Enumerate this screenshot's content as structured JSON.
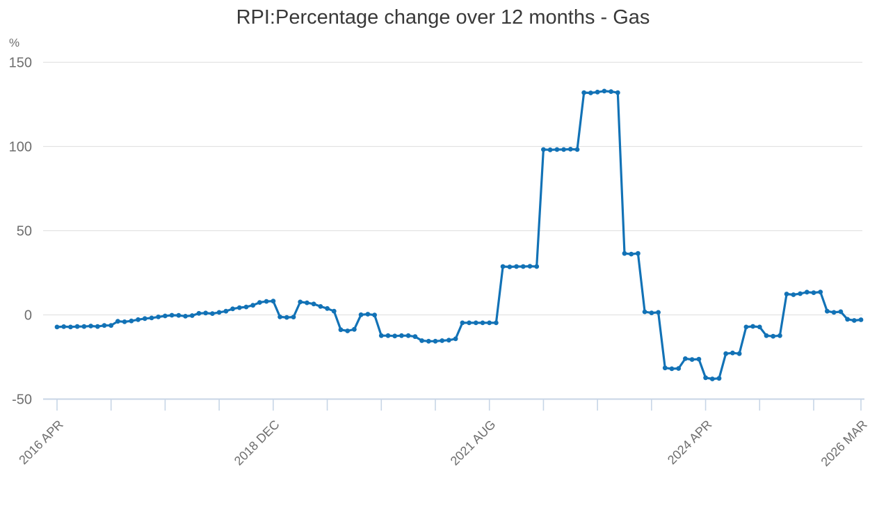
{
  "chart": {
    "title": "RPI:Percentage change over 12 months - Gas",
    "y_unit": "%"
  },
  "chart_data": {
    "type": "line",
    "title": "RPI:Percentage change over 12 months - Gas",
    "y_unit": "%",
    "frequency": "monthly",
    "x_start": "2016 APR",
    "x_end": "2026 MAR",
    "ylim": [
      -50,
      150
    ],
    "y_ticks": [
      150,
      100,
      50,
      0,
      -50
    ],
    "grid": "horizontal",
    "legend": "none",
    "markers": true,
    "x_minor_tick_months": [
      0,
      8,
      16,
      24,
      32,
      40,
      48,
      56,
      64,
      72,
      80,
      88,
      96,
      104,
      112,
      119
    ],
    "x_tick_labels": [
      {
        "month": 0,
        "label": "2016 APR"
      },
      {
        "month": 32,
        "label": "2018 DEC"
      },
      {
        "month": 64,
        "label": "2021 AUG"
      },
      {
        "month": 96,
        "label": "2024 APR"
      },
      {
        "month": 119,
        "label": "2026 MAR"
      }
    ],
    "colors": {
      "line": "#1272b6",
      "grid": "#e2e2e2",
      "axis": "#c7d5e6",
      "tick_text": "#6e6e6e",
      "title_text": "#393939"
    },
    "months": [
      "2016 APR",
      "2016 MAY",
      "2016 JUN",
      "2016 JUL",
      "2016 AUG",
      "2016 SEP",
      "2016 OCT",
      "2016 NOV",
      "2016 DEC",
      "2017 JAN",
      "2017 FEB",
      "2017 MAR",
      "2017 APR",
      "2017 MAY",
      "2017 JUN",
      "2017 JUL",
      "2017 AUG",
      "2017 SEP",
      "2017 OCT",
      "2017 NOV",
      "2017 DEC",
      "2018 JAN",
      "2018 FEB",
      "2018 MAR",
      "2018 APR",
      "2018 MAY",
      "2018 JUN",
      "2018 JUL",
      "2018 AUG",
      "2018 SEP",
      "2018 OCT",
      "2018 NOV",
      "2018 DEC",
      "2019 JAN",
      "2019 FEB",
      "2019 MAR",
      "2019 APR",
      "2019 MAY",
      "2019 JUN",
      "2019 JUL",
      "2019 AUG",
      "2019 SEP",
      "2019 OCT",
      "2019 NOV",
      "2019 DEC",
      "2020 JAN",
      "2020 FEB",
      "2020 MAR",
      "2020 APR",
      "2020 MAY",
      "2020 JUN",
      "2020 JUL",
      "2020 AUG",
      "2020 SEP",
      "2020 OCT",
      "2020 NOV",
      "2020 DEC",
      "2021 JAN",
      "2021 FEB",
      "2021 MAR",
      "2021 APR",
      "2021 MAY",
      "2021 JUN",
      "2021 JUL",
      "2021 AUG",
      "2021 SEP",
      "2021 OCT",
      "2021 NOV",
      "2021 DEC",
      "2022 JAN",
      "2022 FEB",
      "2022 MAR",
      "2022 APR",
      "2022 MAY",
      "2022 JUN",
      "2022 JUL",
      "2022 AUG",
      "2022 SEP",
      "2022 OCT",
      "2022 NOV",
      "2022 DEC",
      "2023 JAN",
      "2023 FEB",
      "2023 MAR",
      "2023 APR",
      "2023 MAY",
      "2023 JUN",
      "2023 JUL",
      "2023 AUG",
      "2023 SEP",
      "2023 OCT",
      "2023 NOV",
      "2023 DEC",
      "2024 JAN",
      "2024 FEB",
      "2024 MAR",
      "2024 APR",
      "2024 MAY",
      "2024 JUN",
      "2024 JUL",
      "2024 AUG",
      "2024 SEP",
      "2024 OCT",
      "2024 NOV",
      "2024 DEC",
      "2025 JAN",
      "2025 FEB",
      "2025 MAR",
      "2025 APR",
      "2025 MAY",
      "2025 JUN",
      "2025 JUL",
      "2025 AUG",
      "2025 SEP",
      "2025 OCT",
      "2025 NOV",
      "2025 DEC",
      "2026 JAN",
      "2026 FEB",
      "2026 MAR"
    ],
    "values": [
      -7.2,
      -7.0,
      -7.2,
      -6.9,
      -6.9,
      -6.6,
      -6.9,
      -6.3,
      -6.3,
      -3.8,
      -4.1,
      -3.6,
      -2.8,
      -2.2,
      -1.8,
      -1.2,
      -0.6,
      -0.2,
      -0.3,
      -0.8,
      -0.4,
      0.9,
      1.1,
      0.8,
      1.5,
      2.2,
      3.6,
      4.3,
      4.7,
      5.7,
      7.4,
      8.0,
      8.2,
      -1.2,
      -1.5,
      -1.3,
      7.7,
      7.2,
      6.5,
      5.0,
      3.8,
      2.2,
      -8.8,
      -9.5,
      -8.6,
      0.1,
      0.4,
      -0.1,
      -12.3,
      -12.3,
      -12.5,
      -12.3,
      -12.3,
      -12.9,
      -15.3,
      -15.6,
      -15.6,
      -15.3,
      -15.0,
      -14.2,
      -4.7,
      -4.7,
      -4.7,
      -4.7,
      -4.7,
      -4.7,
      28.7,
      28.5,
      28.7,
      28.7,
      28.9,
      28.7,
      98.2,
      98.0,
      98.2,
      98.2,
      98.4,
      98.2,
      132.0,
      131.8,
      132.3,
      132.9,
      132.6,
      132.0,
      36.5,
      36.1,
      36.5,
      1.8,
      1.2,
      1.5,
      -31.5,
      -32.0,
      -31.8,
      -26.0,
      -26.5,
      -26.3,
      -37.3,
      -38.0,
      -37.7,
      -23.0,
      -22.6,
      -23.0,
      -7.2,
      -6.8,
      -7.2,
      -12.3,
      -12.7,
      -12.3,
      12.4,
      12.0,
      12.6,
      13.5,
      13.2,
      13.6,
      2.2,
      1.5,
      1.9,
      -2.6,
      -3.3,
      -2.9
    ]
  }
}
